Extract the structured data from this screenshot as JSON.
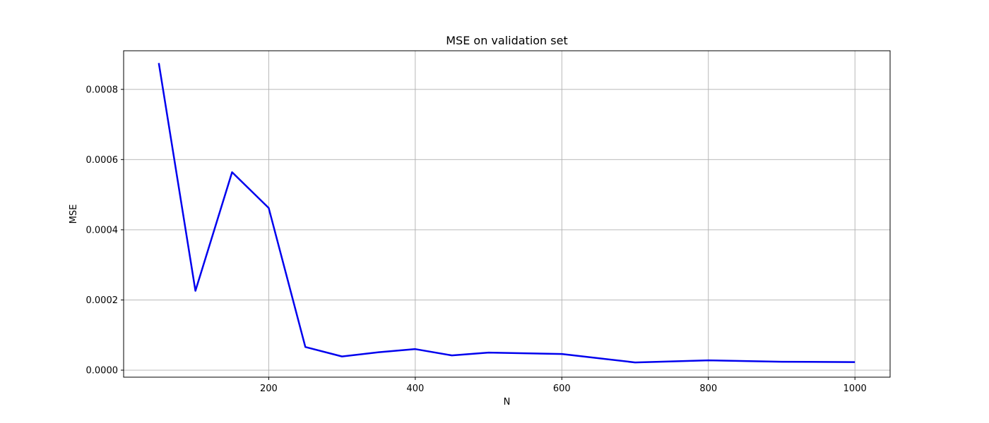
{
  "chart_data": {
    "type": "line",
    "title": "MSE on validation set",
    "xlabel": "N",
    "ylabel": "MSE",
    "xlim": [
      2,
      1048
    ],
    "ylim": [
      -2e-05,
      0.00091
    ],
    "xticks": [
      200,
      400,
      600,
      800,
      1000
    ],
    "xtick_labels": [
      "200",
      "400",
      "600",
      "800",
      "1000"
    ],
    "yticks": [
      0.0,
      0.0002,
      0.0004,
      0.0006,
      0.0008
    ],
    "ytick_labels": [
      "0.0000",
      "0.0002",
      "0.0004",
      "0.0006",
      "0.0008"
    ],
    "grid": true,
    "legend": "none",
    "series": [
      {
        "color": "#0000ee",
        "x": [
          50,
          100,
          150,
          200,
          250,
          300,
          350,
          400,
          450,
          500,
          600,
          700,
          800,
          900,
          1000
        ],
        "y": [
          0.000875,
          0.000226,
          0.000564,
          0.000462,
          6.6e-05,
          3.9e-05,
          5.1e-05,
          6e-05,
          4.2e-05,
          5e-05,
          4.6e-05,
          2.2e-05,
          2.8e-05,
          2.4e-05,
          2.3e-05
        ]
      }
    ]
  }
}
